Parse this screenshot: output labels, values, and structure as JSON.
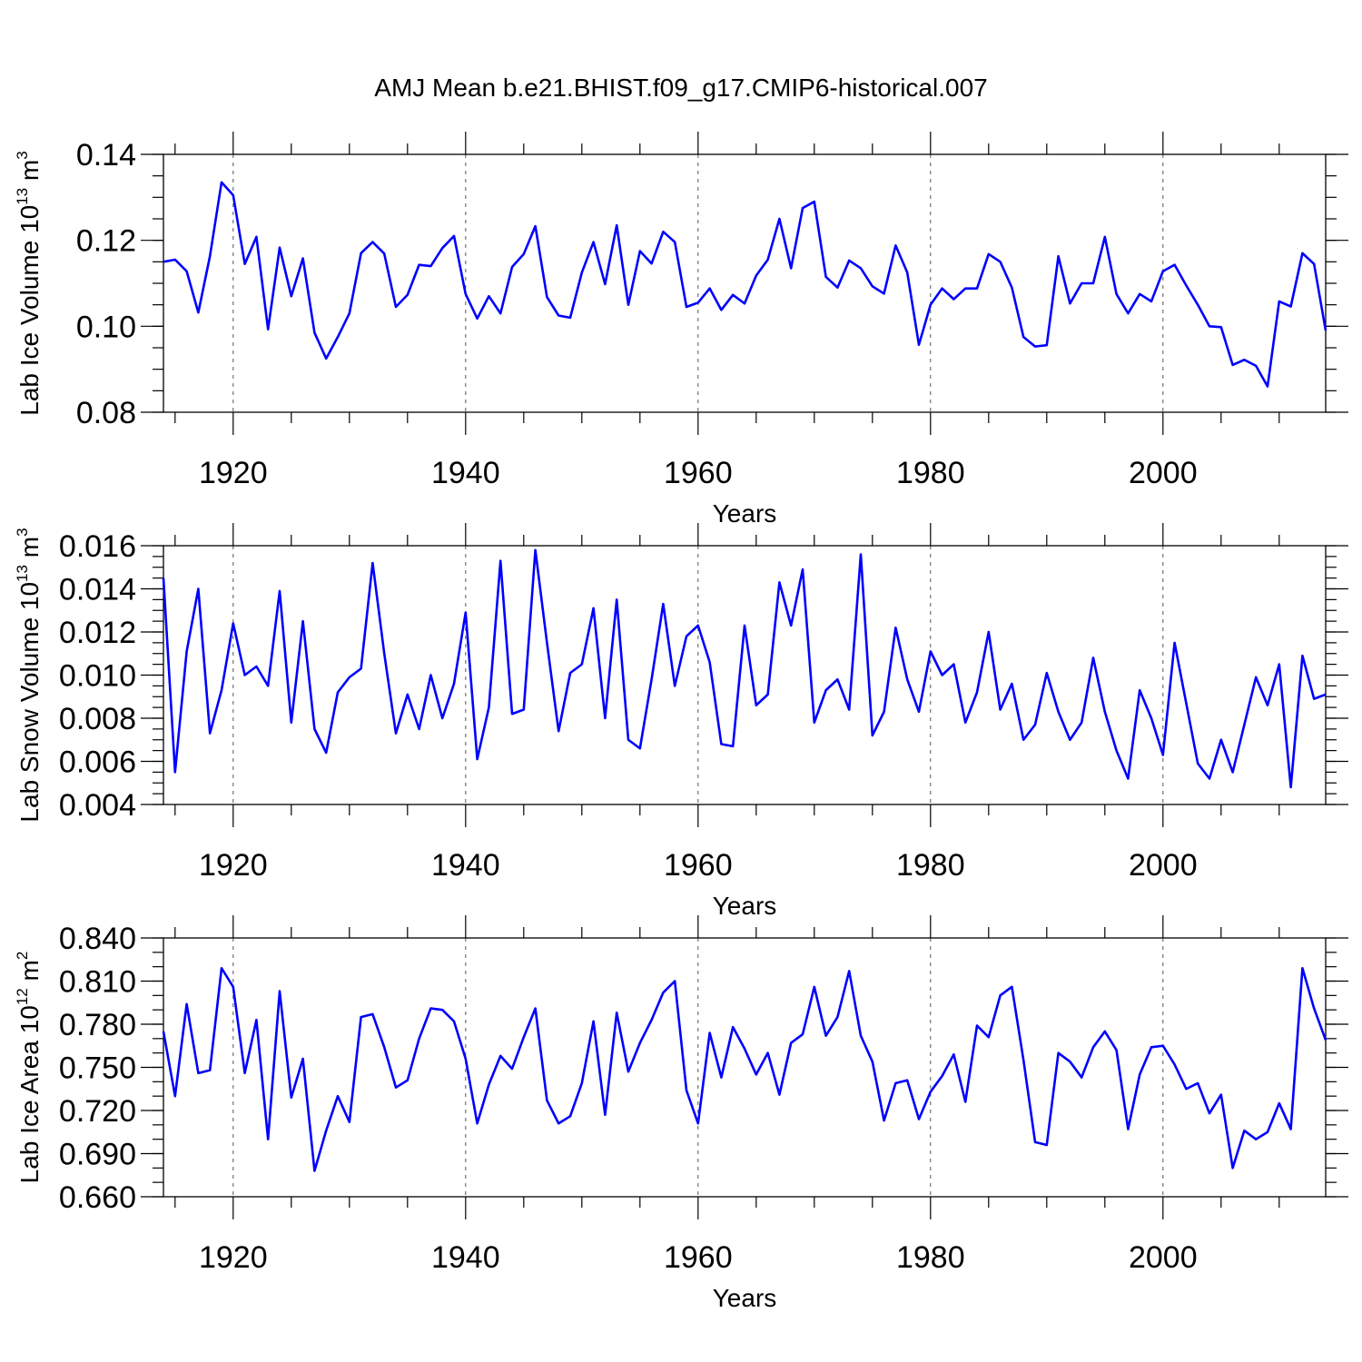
{
  "title": "AMJ Mean b.e21.BHIST.f09_g17.CMIP6-historical.007",
  "line_color": "#0000ff",
  "chart_data": [
    {
      "type": "line",
      "xlabel": "Years",
      "ylabel": "Lab Ice Volume 10",
      "ylabel_exp": "13",
      "ylabel_unit": " m",
      "ylabel_unit_exp": "3",
      "xlim": [
        1914,
        2014
      ],
      "ylim": [
        0.08,
        0.14
      ],
      "xticks": [
        1920,
        1940,
        1960,
        1980,
        2000
      ],
      "xtick_labels": [
        "1920",
        "1940",
        "1960",
        "1980",
        "2000"
      ],
      "yticks": [
        0.08,
        0.1,
        0.12,
        0.14
      ],
      "ytick_labels": [
        "0.08",
        "0.10",
        "0.12",
        "0.14"
      ],
      "yminor_step": 0.005,
      "grid": "vertical dashed at major x ticks",
      "x_start": 1914,
      "values": [
        0.115,
        0.1155,
        0.1128,
        0.1032,
        0.1163,
        0.1335,
        0.1305,
        0.1145,
        0.1208,
        0.0993,
        0.1183,
        0.107,
        0.1158,
        0.0985,
        0.0925,
        0.0975,
        0.103,
        0.117,
        0.1196,
        0.1169,
        0.1045,
        0.1073,
        0.1143,
        0.114,
        0.1182,
        0.121,
        0.1075,
        0.1018,
        0.107,
        0.103,
        0.1138,
        0.1168,
        0.1233,
        0.1068,
        0.1025,
        0.102,
        0.1125,
        0.1196,
        0.1098,
        0.1235,
        0.105,
        0.1175,
        0.1146,
        0.122,
        0.1196,
        0.1045,
        0.1055,
        0.1088,
        0.1038,
        0.1073,
        0.1053,
        0.1118,
        0.1155,
        0.125,
        0.1135,
        0.1275,
        0.129,
        0.1115,
        0.109,
        0.1153,
        0.1135,
        0.1093,
        0.1076,
        0.1188,
        0.1125,
        0.0957,
        0.105,
        0.1088,
        0.1063,
        0.1088,
        0.1088,
        0.1168,
        0.115,
        0.109,
        0.0975,
        0.0953,
        0.0956,
        0.1163,
        0.1053,
        0.11,
        0.11,
        0.1208,
        0.1075,
        0.103,
        0.1075,
        0.1058,
        0.1128,
        0.1143,
        0.1095,
        0.105,
        0.1,
        0.0998,
        0.091,
        0.0922,
        0.0908,
        0.086,
        0.1058,
        0.1046,
        0.117,
        0.1145,
        0.099
      ]
    },
    {
      "type": "line",
      "xlabel": "Years",
      "ylabel": "Lab Snow Volume 10",
      "ylabel_exp": "13",
      "ylabel_unit": " m",
      "ylabel_unit_exp": "3",
      "xlim": [
        1914,
        2014
      ],
      "ylim": [
        0.004,
        0.016
      ],
      "xticks": [
        1920,
        1940,
        1960,
        1980,
        2000
      ],
      "xtick_labels": [
        "1920",
        "1940",
        "1960",
        "1980",
        "2000"
      ],
      "yticks": [
        0.004,
        0.006,
        0.008,
        0.01,
        0.012,
        0.014,
        0.016
      ],
      "ytick_labels": [
        "0.004",
        "0.006",
        "0.008",
        "0.010",
        "0.012",
        "0.014",
        "0.016"
      ],
      "yminor_step": 0.0005,
      "grid": "vertical dashed at major x ticks",
      "x_start": 1914,
      "values": [
        0.0145,
        0.0055,
        0.0111,
        0.014,
        0.0073,
        0.0093,
        0.0124,
        0.01,
        0.0104,
        0.0095,
        0.0139,
        0.0078,
        0.0125,
        0.0075,
        0.0064,
        0.0092,
        0.0099,
        0.0103,
        0.0152,
        0.011,
        0.0073,
        0.0091,
        0.0075,
        0.01,
        0.008,
        0.0096,
        0.0129,
        0.0061,
        0.0085,
        0.0153,
        0.0082,
        0.0084,
        0.0158,
        0.0115,
        0.0074,
        0.0101,
        0.0105,
        0.0131,
        0.008,
        0.0135,
        0.007,
        0.0066,
        0.0098,
        0.0133,
        0.0095,
        0.0118,
        0.0123,
        0.0106,
        0.0068,
        0.0067,
        0.0123,
        0.0086,
        0.0091,
        0.0143,
        0.0123,
        0.0149,
        0.0078,
        0.0093,
        0.0098,
        0.0084,
        0.0156,
        0.0072,
        0.0083,
        0.0122,
        0.0098,
        0.0083,
        0.0111,
        0.01,
        0.0105,
        0.0078,
        0.0092,
        0.012,
        0.0084,
        0.0096,
        0.007,
        0.0077,
        0.0101,
        0.0083,
        0.007,
        0.0078,
        0.0108,
        0.0083,
        0.0065,
        0.0052,
        0.0093,
        0.008,
        0.0063,
        0.0115,
        0.0087,
        0.0059,
        0.0052,
        0.007,
        0.0055,
        0.0077,
        0.0099,
        0.0086,
        0.0105,
        0.0048,
        0.0109,
        0.0089,
        0.0091
      ]
    },
    {
      "type": "line",
      "xlabel": "Years",
      "ylabel": "Lab Ice Area 10",
      "ylabel_exp": "12",
      "ylabel_unit": " m",
      "ylabel_unit_exp": "2",
      "xlim": [
        1914,
        2014
      ],
      "ylim": [
        0.66,
        0.84
      ],
      "xticks": [
        1920,
        1940,
        1960,
        1980,
        2000
      ],
      "xtick_labels": [
        "1920",
        "1940",
        "1960",
        "1980",
        "2000"
      ],
      "yticks": [
        0.66,
        0.69,
        0.72,
        0.75,
        0.78,
        0.81,
        0.84
      ],
      "ytick_labels": [
        "0.660",
        "0.690",
        "0.720",
        "0.750",
        "0.780",
        "0.810",
        "0.840"
      ],
      "yminor_step": 0.01,
      "grid": "vertical dashed at major x ticks",
      "x_start": 1914,
      "values": [
        0.775,
        0.73,
        0.794,
        0.746,
        0.748,
        0.819,
        0.806,
        0.746,
        0.783,
        0.7,
        0.803,
        0.729,
        0.756,
        0.678,
        0.706,
        0.73,
        0.712,
        0.785,
        0.787,
        0.764,
        0.736,
        0.741,
        0.77,
        0.791,
        0.79,
        0.782,
        0.756,
        0.711,
        0.738,
        0.758,
        0.749,
        0.771,
        0.791,
        0.727,
        0.711,
        0.716,
        0.739,
        0.782,
        0.717,
        0.788,
        0.747,
        0.767,
        0.783,
        0.802,
        0.81,
        0.734,
        0.711,
        0.774,
        0.743,
        0.778,
        0.763,
        0.745,
        0.76,
        0.731,
        0.767,
        0.773,
        0.806,
        0.772,
        0.785,
        0.817,
        0.772,
        0.754,
        0.713,
        0.739,
        0.741,
        0.714,
        0.733,
        0.744,
        0.759,
        0.726,
        0.779,
        0.771,
        0.8,
        0.806,
        0.755,
        0.698,
        0.696,
        0.76,
        0.754,
        0.743,
        0.764,
        0.775,
        0.762,
        0.707,
        0.745,
        0.764,
        0.765,
        0.752,
        0.735,
        0.739,
        0.718,
        0.731,
        0.68,
        0.706,
        0.7,
        0.705,
        0.725,
        0.707,
        0.819,
        0.791,
        0.769
      ]
    }
  ]
}
